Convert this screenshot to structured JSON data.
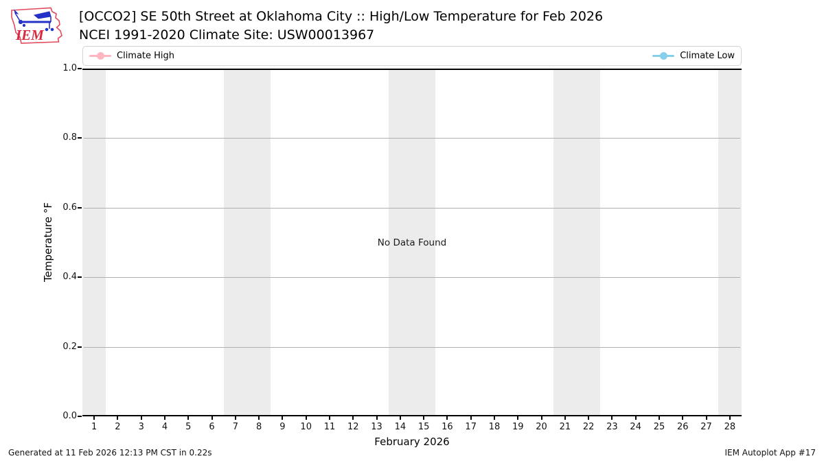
{
  "logo": {
    "text": "IEM"
  },
  "header": {
    "title_line1": "[OCCO2] SE 50th Street at Oklahoma City :: High/Low Temperature for Feb 2026",
    "title_line2": "NCEI 1991-2020 Climate Site: USW00013967"
  },
  "legend": {
    "items": [
      {
        "label": "Climate High",
        "color": "#ffb6c1"
      },
      {
        "label": "Climate Low",
        "color": "#87ceeb"
      }
    ]
  },
  "plot": {
    "no_data_text": "No Data Found",
    "ylabel": "Temperature °F",
    "xlabel": "February 2026",
    "weekend_band_color": "#ececec",
    "gridline_color": "#b0b0b0"
  },
  "footer": {
    "left": "Generated at 11 Feb 2026 12:13 PM CST in 0.22s",
    "right": "IEM Autoplot App #17"
  },
  "chart_data": {
    "type": "line",
    "title": "[OCCO2] SE 50th Street at Oklahoma City :: High/Low Temperature for Feb 2026",
    "subtitle": "NCEI 1991-2020 Climate Site: USW00013967",
    "xlabel": "February 2026",
    "ylabel": "Temperature °F",
    "x": [
      1,
      2,
      3,
      4,
      5,
      6,
      7,
      8,
      9,
      10,
      11,
      12,
      13,
      14,
      15,
      16,
      17,
      18,
      19,
      20,
      21,
      22,
      23,
      24,
      25,
      26,
      27,
      28
    ],
    "series": [
      {
        "name": "Climate High",
        "color": "#ffb6c1",
        "values": []
      },
      {
        "name": "Climate Low",
        "color": "#87ceeb",
        "values": []
      }
    ],
    "xlim": [
      0.5,
      28.5
    ],
    "ylim": [
      0.0,
      1.0
    ],
    "yticks": [
      0.0,
      0.2,
      0.4,
      0.6,
      0.8,
      1.0
    ],
    "grid": "horizontal",
    "legend_position": "top-expand",
    "annotations": [
      "No Data Found"
    ],
    "weekend_shading_day_ranges": [
      [
        0.5,
        1.5
      ],
      [
        6.5,
        8.5
      ],
      [
        13.5,
        15.5
      ],
      [
        20.5,
        22.5
      ],
      [
        27.5,
        28.5
      ]
    ]
  }
}
